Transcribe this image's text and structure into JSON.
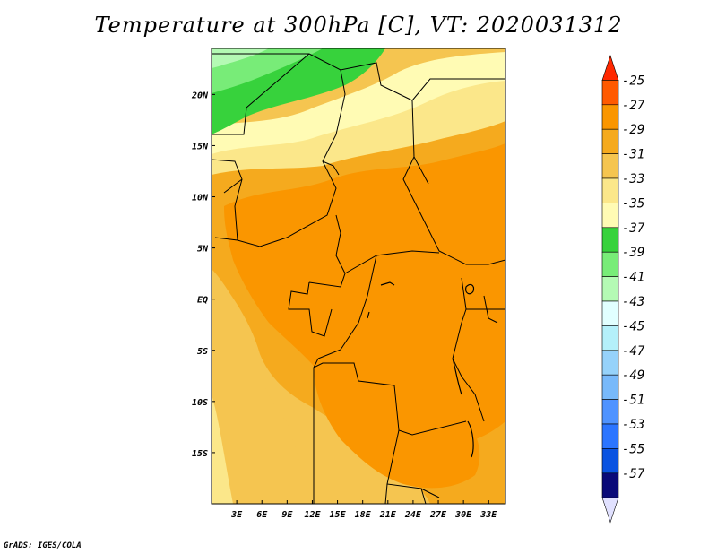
{
  "title": "Temperature at 300hPa [C], VT: 2020031312",
  "credit": "GrADS: IGES/COLA",
  "map": {
    "lat_labels": [
      "20N",
      "15N",
      "10N",
      "5N",
      "EQ",
      "5S",
      "10S",
      "15S"
    ],
    "lon_labels": [
      "3E",
      "6E",
      "9E",
      "12E",
      "15E",
      "18E",
      "21E",
      "24E",
      "27E",
      "30E",
      "33E"
    ],
    "lat_range": [
      -20,
      24.5
    ],
    "lon_range": [
      0,
      35
    ]
  },
  "colorbar": {
    "labels": [
      "-25",
      "-27",
      "-29",
      "-31",
      "-33",
      "-35",
      "-37",
      "-39",
      "-41",
      "-43",
      "-45",
      "-47",
      "-49",
      "-51",
      "-53",
      "-55",
      "-57"
    ],
    "colors": [
      "#ff2800",
      "#ff5a00",
      "#fa9600",
      "#f5aa1e",
      "#f5c550",
      "#fbe78a",
      "#fffbb4",
      "#37d23c",
      "#78ec78",
      "#b4fab4",
      "#e1ffff",
      "#b4f0fa",
      "#96d2fa",
      "#78b9fa",
      "#4f93ff",
      "#2c75ff",
      "#0a53e1",
      "#0a0a78",
      "#e1e1ff"
    ]
  },
  "field_colors": {
    "c33": "#fbe78a",
    "c31": "#f5c550",
    "c29": "#f5aa1e",
    "c27": "#fa9600",
    "c35": "#fffbb4",
    "c37": "#37d23c",
    "c39": "#78ec78",
    "c41": "#b4fab4"
  }
}
